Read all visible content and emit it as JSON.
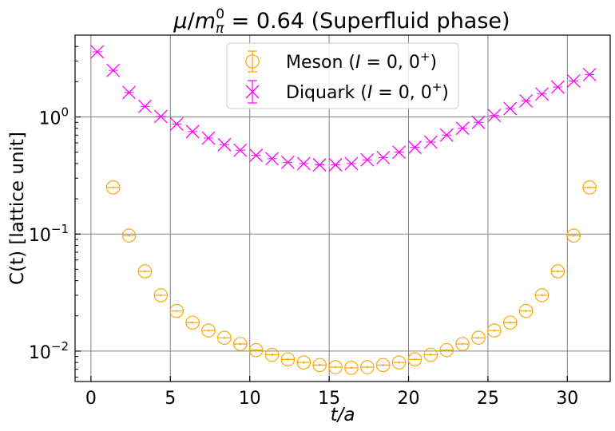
{
  "chart_data": {
    "type": "scatter",
    "title": "μ/m_π^0 = 0.64 (Superfluid phase)",
    "title_parts": {
      "mu": "μ",
      "slash": "/",
      "m": "m",
      "sub": "π",
      "sup": "0",
      "value": " = 0.64 (Superfluid phase)"
    },
    "xlabel": "t/a",
    "ylabel": "C(t) [lattice unit]",
    "xlim": [
      -1,
      32.7
    ],
    "ylim": [
      0.0055,
      5.0
    ],
    "yscale": "log",
    "grid": true,
    "legend_position": "top-center",
    "x_ticks": [
      0,
      5,
      10,
      15,
      20,
      25,
      30
    ],
    "x_tick_labels": [
      "0",
      "5",
      "10",
      "15",
      "20",
      "25",
      "30"
    ],
    "y_ticks": [
      1,
      0.1,
      0.01
    ],
    "y_tick_labels": [
      {
        "base": "10",
        "exp": "0"
      },
      {
        "base": "10",
        "exp": "−1"
      },
      {
        "base": "10",
        "exp": "−2"
      }
    ],
    "series": [
      {
        "name": "Meson (I = 0, 0⁺)",
        "legend_parts": {
          "prefix": "Meson (",
          "italic": "I",
          "rest": " = 0, 0",
          "sup": "+",
          "suffix": ")"
        },
        "color": "#ffa500",
        "marker": "circle",
        "x": [
          1.4,
          2.4,
          3.4,
          4.4,
          5.4,
          6.4,
          7.4,
          8.4,
          9.4,
          10.4,
          11.4,
          12.4,
          13.4,
          14.4,
          15.4,
          16.4,
          17.4,
          18.4,
          19.4,
          20.4,
          21.4,
          22.4,
          23.4,
          24.4,
          25.4,
          26.4,
          27.4,
          28.4,
          29.4,
          30.4,
          31.4
        ],
        "y": [
          0.25,
          0.097,
          0.048,
          0.03,
          0.022,
          0.0175,
          0.015,
          0.013,
          0.0115,
          0.0102,
          0.0093,
          0.0085,
          0.008,
          0.0076,
          0.0073,
          0.0072,
          0.0073,
          0.0076,
          0.008,
          0.0085,
          0.0093,
          0.0102,
          0.0115,
          0.013,
          0.015,
          0.0175,
          0.022,
          0.03,
          0.048,
          0.097,
          0.25
        ]
      },
      {
        "name": "Diquark (I = 0, 0⁺)",
        "legend_parts": {
          "prefix": "Diquark (",
          "italic": "I",
          "rest": " = 0, 0",
          "sup": "+",
          "suffix": ")"
        },
        "color": "#ff00ff",
        "marker": "x",
        "x": [
          0.4,
          1.4,
          2.4,
          3.4,
          4.4,
          5.4,
          6.4,
          7.4,
          8.4,
          9.4,
          10.4,
          11.4,
          12.4,
          13.4,
          14.4,
          15.4,
          16.4,
          17.4,
          18.4,
          19.4,
          20.4,
          21.4,
          22.4,
          23.4,
          24.4,
          25.4,
          26.4,
          27.4,
          28.4,
          29.4,
          30.4,
          31.4
        ],
        "y": [
          3.6,
          2.5,
          1.62,
          1.23,
          1.01,
          0.87,
          0.75,
          0.66,
          0.58,
          0.52,
          0.47,
          0.44,
          0.41,
          0.4,
          0.39,
          0.39,
          0.4,
          0.43,
          0.45,
          0.5,
          0.55,
          0.61,
          0.7,
          0.8,
          0.9,
          1.03,
          1.18,
          1.37,
          1.57,
          1.8,
          2.03,
          2.3
        ]
      }
    ]
  }
}
